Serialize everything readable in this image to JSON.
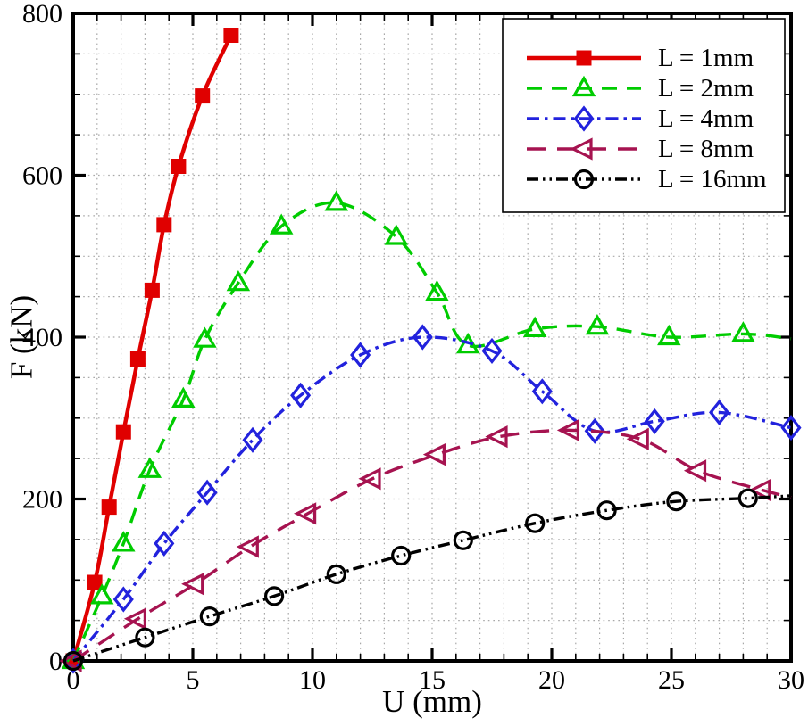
{
  "chart_data": {
    "type": "line",
    "title": "",
    "xlabel": "U (mm)",
    "ylabel": "F (kN)",
    "xlim": [
      0,
      30
    ],
    "ylim": [
      0,
      800
    ],
    "x_major_ticks": [
      0,
      5,
      10,
      15,
      20,
      25,
      30
    ],
    "y_major_ticks": [
      0,
      200,
      400,
      600,
      800
    ],
    "x_minor_step": 1,
    "y_minor_step": 50,
    "grid": {
      "style": "dotted",
      "color": "#a8a8a8",
      "on": true
    },
    "legend": {
      "position": "top-right",
      "border_color": "#000000",
      "background": "#ffffff"
    },
    "series": [
      {
        "name": "L = 1mm",
        "color": "#e00000",
        "line_style": "solid",
        "line_width": 4.5,
        "marker": "filled-square",
        "x": [
          0,
          0.9,
          1.5,
          2.1,
          2.7,
          3.3,
          3.8,
          4.4,
          5.4,
          6.6
        ],
        "y": [
          0,
          97,
          190,
          283,
          373,
          458,
          539,
          611,
          698,
          773
        ]
      },
      {
        "name": "L = 2mm",
        "color": "#00cc00",
        "line_style": "dashed",
        "line_width": 3.4,
        "marker": "open-triangle-up",
        "x": [
          0,
          1.2,
          2.1,
          3.2,
          4.6,
          5.5,
          6.9,
          8.7,
          11.0,
          13.5,
          15.2,
          16.5,
          19.3,
          21.9,
          24.9,
          28.0
        ],
        "y": [
          0,
          80,
          145,
          236,
          323,
          397,
          467,
          537,
          566,
          524,
          455,
          390,
          410,
          413,
          400,
          404
        ],
        "line_end": {
          "x": 30,
          "y": 398
        }
      },
      {
        "name": "L = 4mm",
        "color": "#2222dd",
        "line_style": "dash-dot",
        "line_width": 3.4,
        "marker": "open-diamond",
        "x": [
          0,
          2.1,
          3.8,
          5.6,
          7.5,
          9.5,
          12.0,
          14.6,
          17.5,
          19.6,
          21.8,
          24.3,
          27.0,
          30.0
        ],
        "y": [
          0,
          76,
          145,
          208,
          273,
          328,
          378,
          400,
          383,
          333,
          284,
          296,
          307,
          288
        ]
      },
      {
        "name": "L = 8mm",
        "color": "#a61350",
        "line_style": "long-dash",
        "line_width": 3.4,
        "marker": "open-triangle-left",
        "x": [
          0,
          2.7,
          5.1,
          7.4,
          9.8,
          12.5,
          15.2,
          17.8,
          20.8,
          23.7,
          26.1,
          28.8
        ],
        "y": [
          0,
          52,
          95,
          141,
          182,
          225,
          255,
          277,
          285,
          274,
          235,
          211
        ],
        "line_end": {
          "x": 30,
          "y": 202
        }
      },
      {
        "name": "L = 16mm",
        "color": "#000000",
        "line_style": "dash-dot-dot",
        "line_width": 3.4,
        "marker": "open-circle",
        "x": [
          0,
          3.0,
          5.7,
          8.4,
          11.0,
          13.7,
          16.3,
          19.3,
          22.3,
          25.2,
          28.2
        ],
        "y": [
          0,
          29,
          55,
          80,
          107,
          130,
          149,
          170,
          186,
          197,
          201
        ],
        "line_end": {
          "x": 30,
          "y": 204
        }
      }
    ]
  }
}
